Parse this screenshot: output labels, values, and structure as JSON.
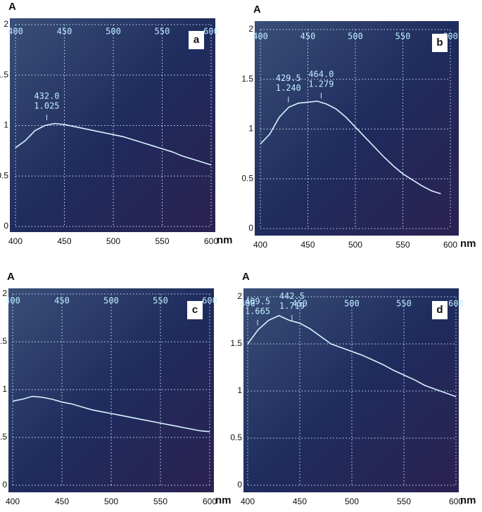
{
  "chart_data": [
    {
      "type": "line",
      "panel_label": "a",
      "xlabel": "nm",
      "ylabel": "A",
      "xlim": [
        400,
        600
      ],
      "ylim": [
        0,
        2
      ],
      "xticks": [
        400,
        450,
        500,
        550,
        600
      ],
      "yticks": [
        0,
        0.5,
        1,
        1.5,
        2
      ],
      "grid": true,
      "x": [
        400,
        410,
        420,
        430,
        440,
        450,
        460,
        470,
        480,
        490,
        500,
        510,
        520,
        530,
        540,
        550,
        560,
        570,
        580,
        590,
        600
      ],
      "series": [
        {
          "color": "#d8f4ff",
          "values": [
            0.78,
            0.85,
            0.95,
            1.0,
            1.02,
            1.01,
            0.99,
            0.97,
            0.95,
            0.93,
            0.91,
            0.89,
            0.86,
            0.83,
            0.8,
            0.77,
            0.74,
            0.7,
            0.67,
            0.64,
            0.61
          ]
        }
      ],
      "annotations": [
        {
          "x": 432.0,
          "y": 1.025,
          "x_label": "432.0",
          "y_label": "1.025"
        }
      ]
    },
    {
      "type": "line",
      "panel_label": "b",
      "xlabel": "nm",
      "ylabel": "A",
      "xlim": [
        400,
        600
      ],
      "ylim": [
        0,
        2
      ],
      "xticks": [
        400,
        450,
        500,
        550,
        600
      ],
      "yticks": [
        0,
        0.5,
        1,
        1.5,
        2
      ],
      "grid": true,
      "x": [
        400,
        410,
        420,
        430,
        440,
        450,
        460,
        470,
        480,
        490,
        500,
        510,
        520,
        530,
        540,
        550,
        560,
        570,
        580,
        590
      ],
      "series": [
        {
          "color": "#d8f4ff",
          "values": [
            0.85,
            0.95,
            1.12,
            1.22,
            1.26,
            1.27,
            1.28,
            1.25,
            1.2,
            1.12,
            1.02,
            0.92,
            0.82,
            0.72,
            0.63,
            0.55,
            0.49,
            0.43,
            0.38,
            0.35
          ]
        }
      ],
      "annotations": [
        {
          "x": 429.5,
          "y": 1.24,
          "x_label": "429.5",
          "y_label": "1.240"
        },
        {
          "x": 464.0,
          "y": 1.279,
          "x_label": "464.0",
          "y_label": "1.279"
        }
      ]
    },
    {
      "type": "line",
      "panel_label": "c",
      "xlabel": "nm",
      "ylabel": "A",
      "xlim": [
        400,
        600
      ],
      "ylim": [
        0,
        2
      ],
      "xticks": [
        400,
        450,
        500,
        550,
        600
      ],
      "yticks": [
        0,
        0.5,
        1,
        1.5,
        2
      ],
      "grid": true,
      "x": [
        400,
        410,
        420,
        430,
        440,
        450,
        460,
        470,
        480,
        490,
        500,
        510,
        520,
        530,
        540,
        550,
        560,
        570,
        580,
        590,
        600
      ],
      "series": [
        {
          "color": "#d8f4ff",
          "values": [
            0.88,
            0.9,
            0.93,
            0.92,
            0.9,
            0.87,
            0.85,
            0.82,
            0.79,
            0.77,
            0.75,
            0.73,
            0.71,
            0.69,
            0.67,
            0.65,
            0.63,
            0.61,
            0.59,
            0.57,
            0.56
          ]
        }
      ],
      "annotations": []
    },
    {
      "type": "line",
      "panel_label": "d",
      "xlabel": "nm",
      "ylabel": "A",
      "xlim": [
        400,
        600
      ],
      "ylim": [
        0,
        2
      ],
      "xticks": [
        400,
        450,
        500,
        550,
        600
      ],
      "yticks": [
        0,
        0.5,
        1,
        1.5,
        2
      ],
      "grid": true,
      "x": [
        400,
        410,
        420,
        430,
        440,
        450,
        460,
        470,
        480,
        490,
        500,
        510,
        520,
        530,
        540,
        550,
        560,
        570,
        580,
        590,
        600
      ],
      "series": [
        {
          "color": "#d8f4ff",
          "values": [
            1.5,
            1.65,
            1.75,
            1.8,
            1.75,
            1.72,
            1.66,
            1.58,
            1.5,
            1.46,
            1.42,
            1.38,
            1.33,
            1.28,
            1.22,
            1.17,
            1.12,
            1.06,
            1.02,
            0.98,
            0.94
          ]
        }
      ],
      "annotations": [
        {
          "x": 409.5,
          "y": 1.665,
          "x_label": "409.5",
          "y_label": "1.665"
        },
        {
          "x": 442.5,
          "y": 1.719,
          "x_label": "442.5",
          "y_label": "1.719"
        }
      ]
    }
  ]
}
